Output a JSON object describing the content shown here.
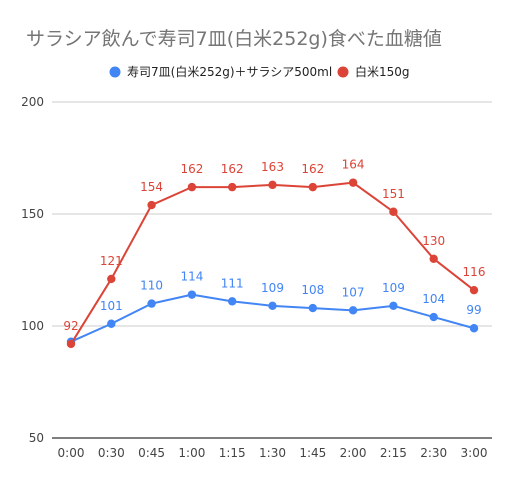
{
  "chart_data": {
    "type": "line",
    "title": "サラシア飲んで寿司7皿(白米252g)食べた血糖値",
    "categories": [
      "0:00",
      "0:30",
      "0:45",
      "1:00",
      "1:15",
      "1:30",
      "1:45",
      "2:00",
      "2:15",
      "2:30",
      "3:00"
    ],
    "series": [
      {
        "name": "寿司7皿(白米252g)＋サラシア500ml",
        "color": "#4285F4",
        "values": [
          93,
          101,
          110,
          114,
          111,
          109,
          108,
          107,
          109,
          104,
          99
        ],
        "labels": [
          "",
          "101",
          "110",
          "114",
          "111",
          "109",
          "108",
          "107",
          "109",
          "104",
          "99"
        ]
      },
      {
        "name": "白米150g",
        "color": "#DB4437",
        "values": [
          92,
          121,
          154,
          162,
          162,
          163,
          162,
          164,
          151,
          130,
          116
        ],
        "labels": [
          "92",
          "121",
          "154",
          "162",
          "162",
          "163",
          "162",
          "164",
          "151",
          "130",
          "116"
        ]
      }
    ],
    "yticks": [
      "200",
      "150",
      "100",
      "50"
    ],
    "ylim": [
      50,
      200
    ],
    "xlabel": "",
    "ylabel": "",
    "legend_position": "top",
    "grid": true
  }
}
